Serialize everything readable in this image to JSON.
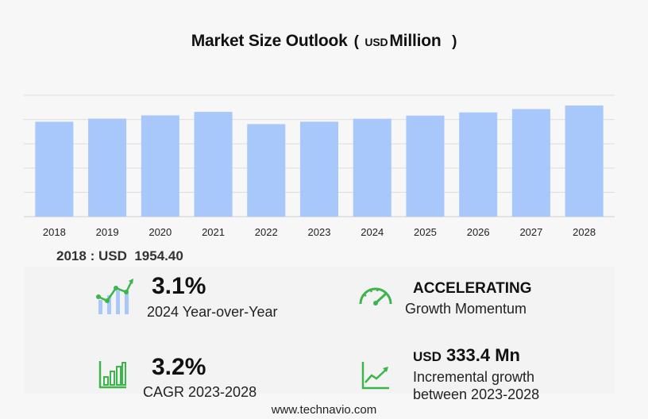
{
  "header": {
    "title": "Market Size Outlook",
    "paren_open": "(",
    "unit": "USD",
    "scale": "Million",
    "paren_close": ")"
  },
  "colors": {
    "bar": "#a8c8fb",
    "grid": "#dddddd",
    "icon_green": "#3cb54a"
  },
  "chart_data": {
    "type": "bar",
    "categories": [
      "2018",
      "2019",
      "2020",
      "2021",
      "2022",
      "2023",
      "2024",
      "2025",
      "2026",
      "2027",
      "2028"
    ],
    "values": [
      1954.4,
      2018,
      2085,
      2158,
      1905,
      1955,
      2016,
      2080,
      2146,
      2215,
      2288
    ],
    "ylim": [
      0,
      2500
    ],
    "grid": true,
    "title": "Market Size Outlook",
    "xlabel": "",
    "ylabel": ""
  },
  "base_value": {
    "year": "2018",
    "separator": ":",
    "unit": "USD",
    "value": "1954.40"
  },
  "kpis": {
    "yoy": {
      "value": "3.1%",
      "label": "2024 Year-over-Year",
      "icon": "chart-growth-icon"
    },
    "momentum": {
      "value": "ACCELERATING",
      "label": "Growth Momentum",
      "icon": "speedometer-icon"
    },
    "cagr": {
      "value": "3.2%",
      "label": "CAGR 2023-2028",
      "icon": "bar-chart-icon"
    },
    "incremental": {
      "unit": "USD",
      "value": "333.4 Mn",
      "label_line1": "Incremental growth",
      "label_line2": "between 2023-2028",
      "icon": "trend-line-icon"
    }
  },
  "footer": {
    "text": "www.technavio.com"
  }
}
